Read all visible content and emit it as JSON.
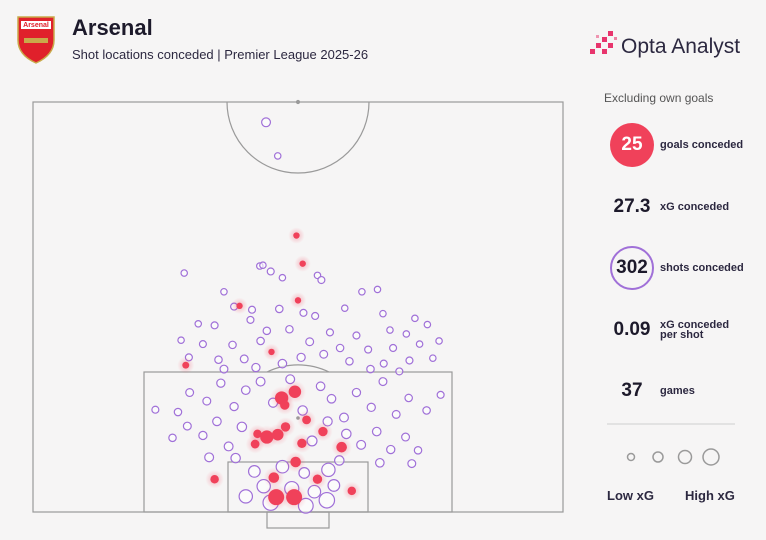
{
  "header": {
    "title": "Arsenal",
    "subtitle": "Shot locations conceded | Premier League 2025-26",
    "crest": "Arsenal",
    "brand": "Opta Analyst"
  },
  "panel": {
    "note": "Excluding own goals",
    "stats": [
      {
        "value": 25,
        "label": "goals conceded"
      },
      {
        "value": 27.3,
        "label": "xG conceded"
      },
      {
        "value": 302,
        "label": "shots conceded"
      },
      {
        "value": 0.09,
        "label": "xG conceded per shot"
      },
      {
        "value": 37,
        "label": "games"
      }
    ],
    "legend_low": "Low xG",
    "legend_high": "High xG"
  },
  "chart_data": {
    "type": "scatter",
    "xlim": [
      0,
      68
    ],
    "ylim": [
      0,
      52.5
    ],
    "series": [
      {
        "color": "#a070d8",
        "x": [
          19.4,
          29.1,
          30.5,
          36.5,
          42.2,
          44.2,
          37.0,
          24.5,
          25.8,
          28.1,
          31.6,
          34.7,
          36.2,
          40.0,
          44.9,
          49.0,
          21.2,
          23.3,
          27.9,
          30.0,
          32.9,
          38.1,
          41.5,
          45.8,
          47.9,
          50.6,
          19.0,
          21.8,
          25.6,
          29.2,
          35.5,
          39.4,
          43.0,
          46.2,
          49.6,
          52.1,
          20.0,
          23.8,
          27.1,
          34.4,
          37.3,
          40.6,
          45.0,
          48.3,
          51.3,
          24.5,
          28.6,
          32.0,
          43.3,
          47.0,
          15.7,
          18.6,
          20.1,
          22.3,
          24.1,
          25.8,
          27.3,
          29.2,
          30.8,
          33.0,
          34.6,
          36.9,
          38.3,
          39.9,
          41.5,
          43.4,
          44.9,
          46.6,
          48.2,
          50.5,
          52.3,
          17.9,
          19.8,
          21.8,
          23.6,
          25.1,
          26.8,
          35.8,
          37.8,
          40.2,
          42.1,
          44.1,
          45.9,
          47.8,
          49.4,
          22.6,
          26.0,
          39.3,
          44.5,
          48.6,
          28.4,
          32.0,
          34.8,
          37.9,
          29.6,
          33.2,
          36.1,
          38.6,
          30.5,
          35.0,
          37.7,
          27.3,
          29.9,
          31.4,
          29.5,
          32.0
        ],
        "y": [
          30.6,
          31.5,
          30.8,
          30.3,
          28.2,
          28.5,
          29.7,
          28.2,
          26.3,
          25.9,
          26.0,
          25.5,
          25.1,
          26.1,
          25.4,
          24.8,
          24.1,
          23.9,
          24.6,
          23.2,
          23.4,
          23.0,
          22.6,
          23.3,
          22.8,
          24.0,
          22.0,
          21.5,
          21.4,
          21.9,
          21.8,
          21.0,
          20.8,
          21.0,
          21.5,
          21.9,
          19.8,
          19.5,
          19.6,
          19.8,
          20.2,
          19.3,
          19.0,
          19.4,
          19.7,
          18.3,
          18.5,
          19.0,
          18.3,
          18.0,
          13.1,
          12.8,
          15.3,
          14.2,
          16.5,
          13.5,
          15.6,
          16.7,
          14.0,
          17.0,
          13.0,
          16.1,
          14.5,
          12.1,
          15.3,
          13.4,
          16.7,
          12.5,
          14.6,
          13.0,
          15.0,
          9.5,
          11.0,
          9.8,
          11.6,
          8.4,
          10.9,
          9.1,
          11.6,
          10.0,
          8.6,
          10.3,
          8.0,
          9.6,
          7.9,
          7.0,
          6.9,
          6.6,
          6.3,
          6.2,
          5.2,
          5.8,
          5.0,
          5.4,
          3.3,
          3.0,
          2.6,
          3.4,
          1.2,
          0.8,
          1.5,
          2.0,
          49.9,
          45.6,
          31.6,
          30.0
        ],
        "xg": [
          0.02,
          0.02,
          0.03,
          0.02,
          0.02,
          0.02,
          0.03,
          0.02,
          0.03,
          0.03,
          0.04,
          0.03,
          0.03,
          0.02,
          0.02,
          0.02,
          0.02,
          0.03,
          0.03,
          0.04,
          0.04,
          0.03,
          0.03,
          0.02,
          0.02,
          0.02,
          0.02,
          0.03,
          0.04,
          0.04,
          0.05,
          0.04,
          0.03,
          0.03,
          0.02,
          0.02,
          0.03,
          0.04,
          0.05,
          0.06,
          0.05,
          0.04,
          0.03,
          0.03,
          0.02,
          0.05,
          0.06,
          0.07,
          0.04,
          0.03,
          0.03,
          0.04,
          0.05,
          0.05,
          0.06,
          0.06,
          0.07,
          0.08,
          0.09,
          0.08,
          0.1,
          0.07,
          0.07,
          0.08,
          0.06,
          0.06,
          0.05,
          0.05,
          0.04,
          0.04,
          0.03,
          0.04,
          0.05,
          0.06,
          0.07,
          0.08,
          0.1,
          0.12,
          0.09,
          0.1,
          0.08,
          0.07,
          0.06,
          0.05,
          0.04,
          0.08,
          0.1,
          0.1,
          0.07,
          0.05,
          0.2,
          0.25,
          0.15,
          0.3,
          0.3,
          0.35,
          0.25,
          0.2,
          0.45,
          0.4,
          0.45,
          0.3,
          0.08,
          0.02,
          0.02,
          0.02
        ]
      },
      {
        "color": "#f0415a",
        "x": [
          33.8,
          34.6,
          34.0,
          26.5,
          30.6,
          19.6,
          31.9,
          33.6,
          32.3,
          35.1,
          32.4,
          28.8,
          30.0,
          31.4,
          37.2,
          34.5,
          39.6,
          28.5,
          33.7,
          30.9,
          36.5,
          23.3,
          40.9,
          31.2,
          33.5
        ],
        "y": [
          35.4,
          31.8,
          27.1,
          26.4,
          20.5,
          18.8,
          14.6,
          15.4,
          13.7,
          11.8,
          10.9,
          10.0,
          9.6,
          9.9,
          10.3,
          8.8,
          8.3,
          8.7,
          6.4,
          4.4,
          4.2,
          4.2,
          2.7,
          1.9,
          1.9
        ],
        "xg": [
          0.02,
          0.02,
          0.02,
          0.02,
          0.02,
          0.03,
          0.3,
          0.25,
          0.1,
          0.08,
          0.1,
          0.07,
          0.3,
          0.2,
          0.1,
          0.1,
          0.15,
          0.08,
          0.15,
          0.15,
          0.1,
          0.07,
          0.07,
          0.5,
          0.5
        ]
      }
    ]
  }
}
